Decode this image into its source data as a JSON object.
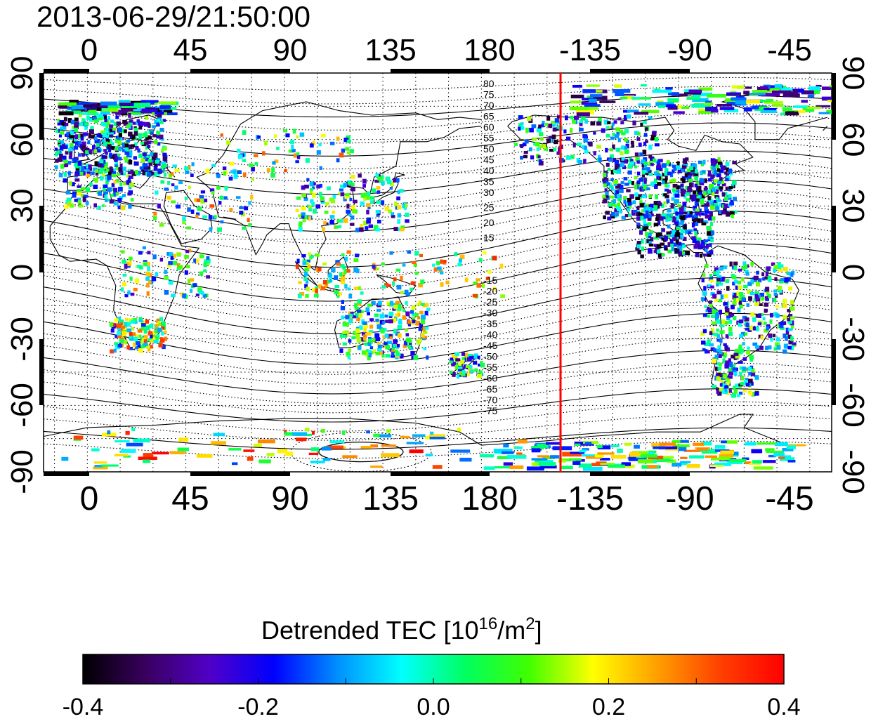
{
  "title": "2013-06-29/21:50:00",
  "map": {
    "top_lon_ticks": [
      "0",
      "45",
      "90",
      "135",
      "180",
      "-135",
      "-90",
      "-45"
    ],
    "bottom_lon_ticks": [
      "0",
      "45",
      "90",
      "135",
      "180",
      "-135",
      "-90",
      "-45"
    ],
    "left_lat_ticks": [
      "90",
      "60",
      "30",
      "0",
      "-30",
      "-60",
      "-90"
    ],
    "right_lat_ticks": [
      "90",
      "60",
      "30",
      "0",
      "-30",
      "-60",
      "-90"
    ],
    "contour_labels_north": [
      "80",
      "75",
      "70",
      "65",
      "60",
      "55",
      "50",
      "45",
      "40",
      "35",
      "30",
      "25",
      "20",
      "15"
    ],
    "contour_labels_south": [
      "-15",
      "-20",
      "-25",
      "-30",
      "-35",
      "-40",
      "-45",
      "-50",
      "-55",
      "-60",
      "-65",
      "-70",
      "-75"
    ],
    "grid": "dotted, every 15 degrees",
    "marker_line_color": "#ff0000"
  },
  "colorbar": {
    "title_main": "Detrended TEC  [10",
    "title_sup": "16",
    "title_mid": "/m",
    "title_sup2": "2",
    "title_end": "]",
    "tick_labels": [
      "-0.4",
      "-0.2",
      "0.0",
      "0.2",
      "0.4"
    ],
    "min": -0.4,
    "max": 0.4,
    "colors": [
      "#000000",
      "#3a0060",
      "#5000c8",
      "#0000ff",
      "#0090ff",
      "#00ffff",
      "#00ff60",
      "#40ff00",
      "#ffff00",
      "#ffa000",
      "#ff4000",
      "#ff0000"
    ]
  }
}
